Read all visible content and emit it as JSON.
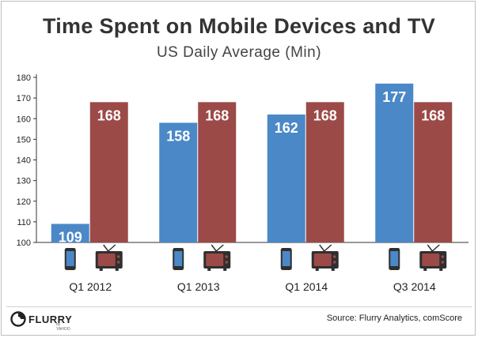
{
  "chart_data": {
    "type": "bar",
    "title": "Time Spent on Mobile Devices and TV",
    "subtitle": "US Daily Average (Min)",
    "categories": [
      "Q1 2012",
      "Q1 2013",
      "Q1 2014",
      "Q3 2014"
    ],
    "series": [
      {
        "values": [
          109,
          158,
          162,
          177
        ],
        "color": "#4a88c8",
        "icon": "smartphone-icon"
      },
      {
        "values": [
          168,
          168,
          168,
          168
        ],
        "color": "#9b4a48",
        "icon": "tv-icon"
      }
    ],
    "value_labels": [
      [
        "109",
        "158",
        "162",
        "177"
      ],
      [
        "168",
        "168",
        "168",
        "168"
      ]
    ],
    "ylim": [
      100,
      180
    ],
    "yticks": [
      "100",
      "110",
      "120",
      "130",
      "140",
      "150",
      "160",
      "170",
      "180"
    ],
    "grid": false,
    "legend": "icons below bars"
  },
  "footer": {
    "logo_text": "FLURRY",
    "logo_sub": "by YAHOO",
    "source": "Source: Flurry Analytics, comScore"
  }
}
